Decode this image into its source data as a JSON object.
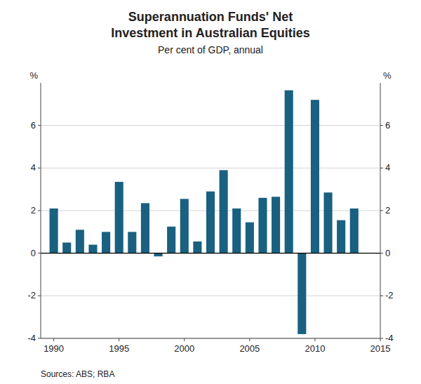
{
  "chart_data": {
    "type": "bar",
    "title": [
      "Superannuation Funds' Net",
      "Investment in Australian Equities"
    ],
    "subtitle": "Per cent of GDP, annual",
    "ylabel": "%",
    "y2label": "%",
    "source": "Sources: ABS; RBA",
    "x": [
      1990,
      1991,
      1992,
      1993,
      1994,
      1995,
      1996,
      1997,
      1998,
      1999,
      2000,
      2001,
      2002,
      2003,
      2004,
      2005,
      2006,
      2007,
      2008,
      2009,
      2010,
      2011,
      2012,
      2013
    ],
    "values": [
      2.1,
      0.5,
      1.1,
      0.4,
      1.0,
      3.35,
      1.0,
      2.35,
      -0.15,
      1.25,
      2.55,
      0.55,
      2.9,
      3.9,
      2.1,
      1.45,
      2.6,
      2.65,
      7.65,
      -3.8,
      7.2,
      2.85,
      1.55,
      2.1
    ],
    "color": "#1a6080",
    "xlim": [
      1989.0,
      2015.0
    ],
    "xticks": [
      1990,
      1995,
      2000,
      2005,
      2010,
      2015
    ],
    "ylim": [
      -4.0,
      8.0
    ],
    "yticks": [
      -4,
      -2,
      0,
      2,
      4,
      6
    ],
    "y2lim": [
      -4.0,
      8.0
    ],
    "y2ticks": [
      -4,
      -2,
      0,
      2,
      4,
      6
    ],
    "grid": true
  }
}
